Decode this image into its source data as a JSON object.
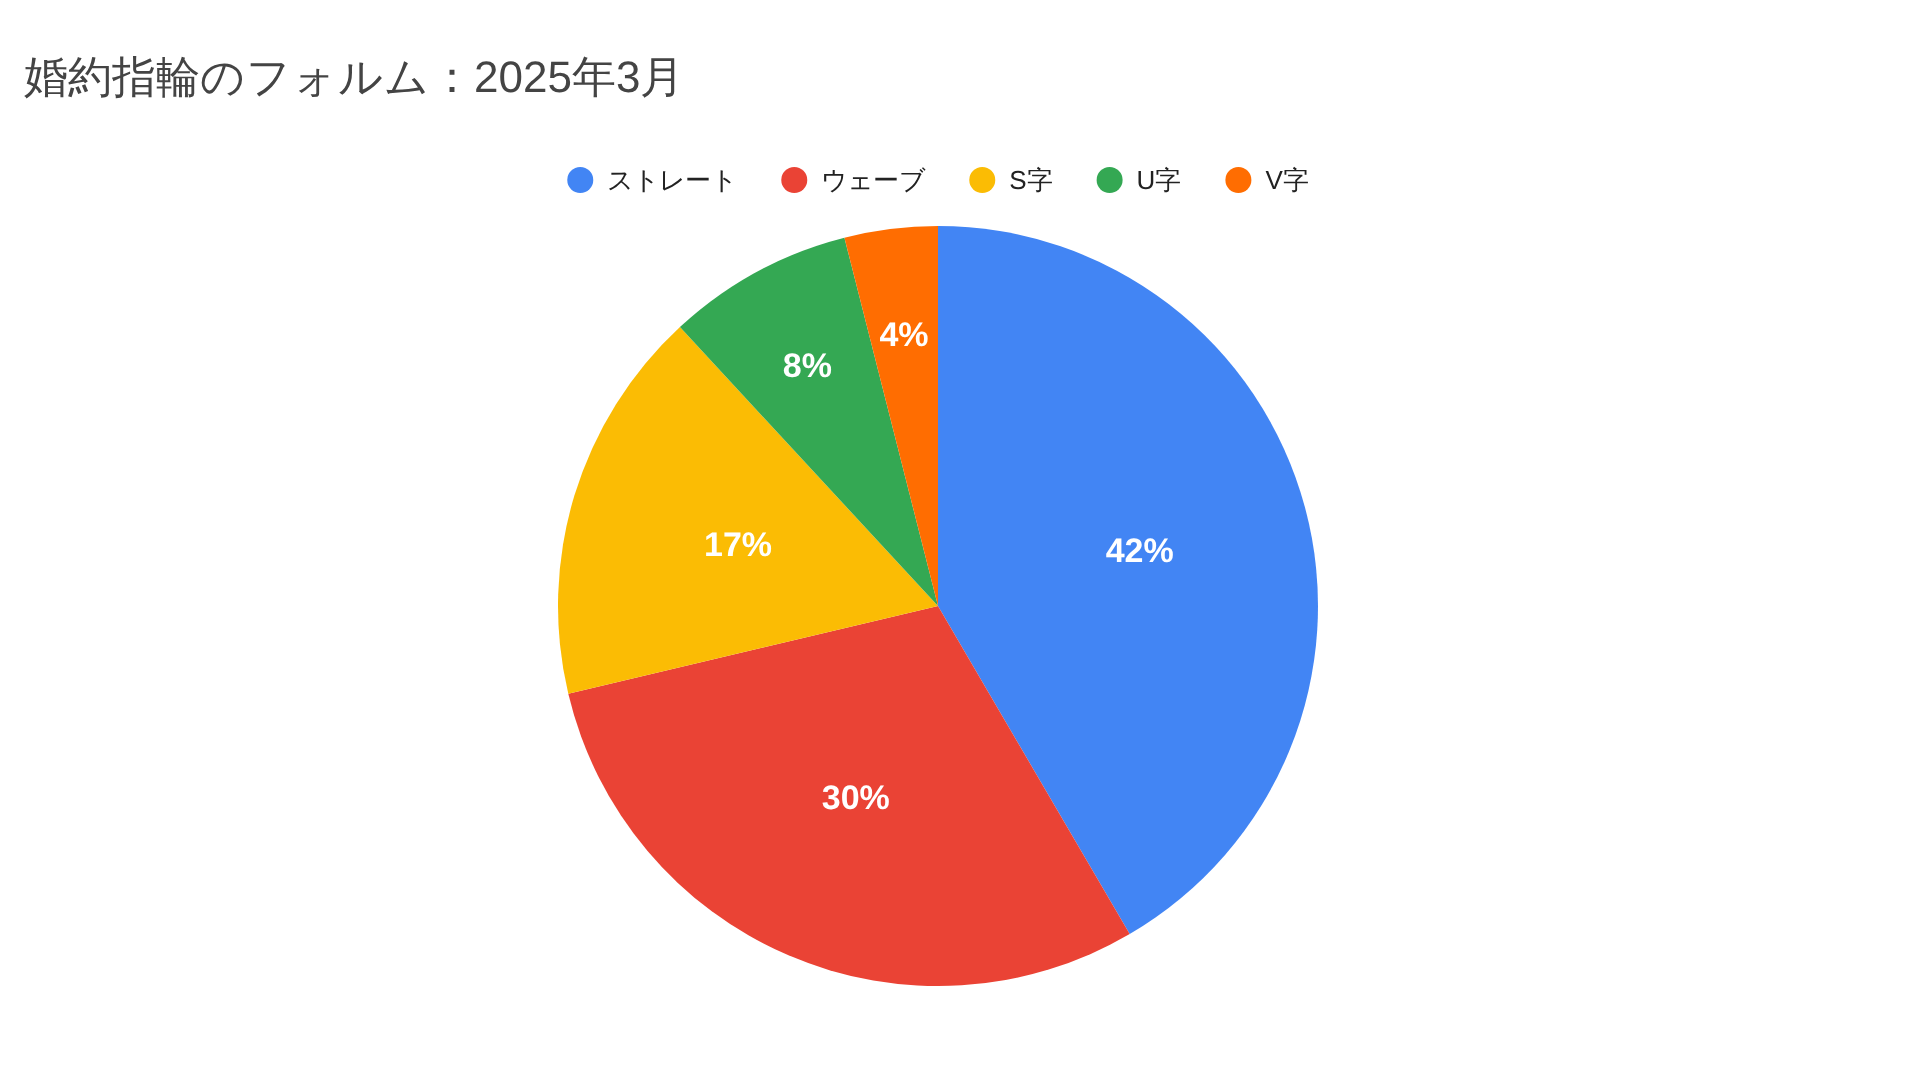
{
  "chart_data": {
    "type": "pie",
    "title": "婚約指輪のフォルム：2025年3月",
    "categories": [
      "ストレート",
      "ウェーブ",
      "S字",
      "U字",
      "V字"
    ],
    "values": [
      42,
      30,
      17,
      8,
      4
    ],
    "colors": [
      "#4285f4",
      "#ea4335",
      "#fbbc04",
      "#34a853",
      "#ff6d01"
    ],
    "value_labels": [
      "42%",
      "30%",
      "17%",
      "8%",
      "4%"
    ],
    "legend": "top"
  }
}
